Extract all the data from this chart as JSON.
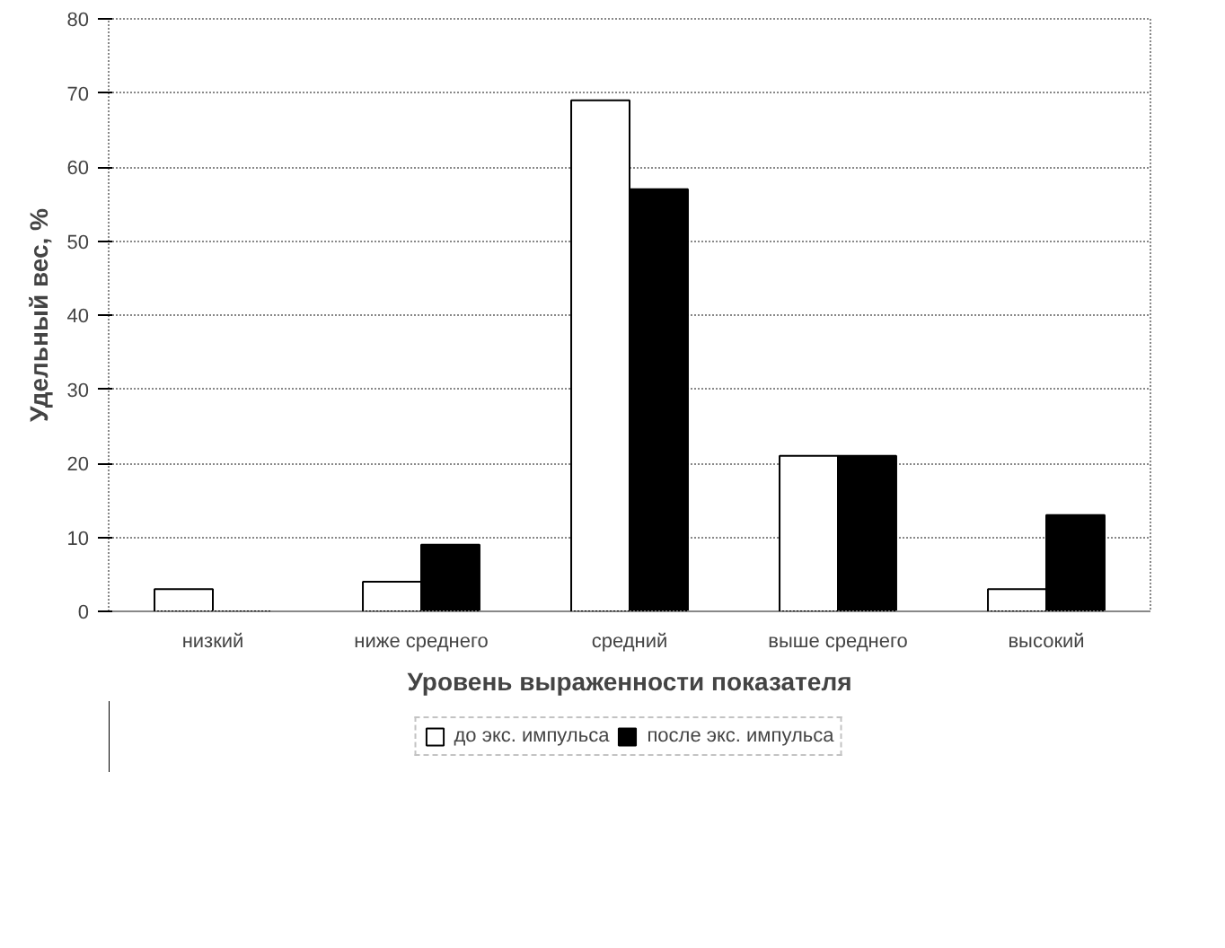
{
  "chart_data": {
    "type": "bar",
    "xlabel": "Уровень выраженности показателя",
    "ylabel": "Удельный вес, %",
    "categories": [
      "низкий",
      "ниже среднего",
      "средний",
      "выше среднего",
      "высокий"
    ],
    "series": [
      {
        "name": "до экс. импульса",
        "color": "#ffffff",
        "values": [
          3,
          4,
          69,
          21,
          3
        ]
      },
      {
        "name": "после экс. импульса",
        "color": "#000000",
        "values": [
          0,
          9,
          57,
          21,
          13
        ]
      }
    ],
    "ylim": [
      0,
      80
    ],
    "yticks": [
      0,
      10,
      20,
      30,
      40,
      50,
      60,
      70,
      80
    ],
    "grid": "y",
    "legend": "bottom"
  }
}
